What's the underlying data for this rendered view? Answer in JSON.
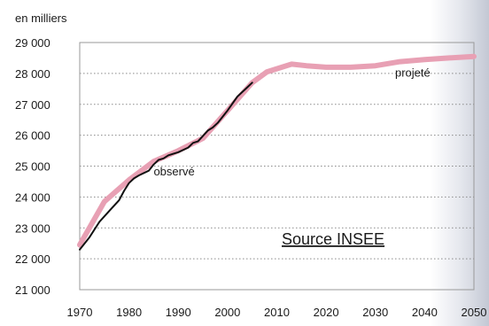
{
  "chart_data": {
    "type": "line",
    "title": "",
    "unit_label": "en milliers",
    "xlabel": "",
    "ylabel": "",
    "xlim": [
      1970,
      2050
    ],
    "ylim": [
      21000,
      29000
    ],
    "x_ticks": [
      1970,
      1980,
      1990,
      2000,
      2010,
      2020,
      2030,
      2040,
      2050
    ],
    "x_tick_labels": [
      "1970",
      "1980",
      "1990",
      "2000",
      "2010",
      "2020",
      "2030",
      "2040",
      "2050"
    ],
    "y_ticks": [
      21000,
      22000,
      23000,
      24000,
      25000,
      26000,
      27000,
      28000,
      29000
    ],
    "y_tick_labels": [
      "21 000",
      "22 000",
      "23 000",
      "24 000",
      "25 000",
      "26 000",
      "27 000",
      "28 000",
      "29 000"
    ],
    "grid": "horizontal dotted",
    "series": [
      {
        "name": "projeté",
        "color": "#e8a0b4",
        "x": [
          1970,
          1975,
          1980,
          1985,
          1990,
          1995,
          2000,
          2005,
          2008,
          2010,
          2013,
          2016,
          2020,
          2025,
          2030,
          2035,
          2040,
          2045,
          2050
        ],
        "y": [
          22450,
          23850,
          24550,
          25150,
          25500,
          25900,
          26800,
          27700,
          28050,
          28150,
          28300,
          28250,
          28200,
          28200,
          28250,
          28380,
          28450,
          28500,
          28550
        ]
      },
      {
        "name": "observé",
        "color": "#111111",
        "x": [
          1970,
          1972,
          1974,
          1976,
          1978,
          1979,
          1980,
          1981,
          1982,
          1984,
          1985,
          1986,
          1987,
          1988,
          1990,
          1992,
          1993,
          1994,
          1996,
          1997,
          1998,
          2000,
          2002,
          2004,
          2005
        ],
        "y": [
          22300,
          22700,
          23200,
          23550,
          23900,
          24200,
          24450,
          24600,
          24700,
          24850,
          25050,
          25200,
          25250,
          25350,
          25450,
          25600,
          25750,
          25800,
          26150,
          26250,
          26400,
          26800,
          27250,
          27550,
          27700
        ]
      }
    ],
    "annotations": [
      {
        "text": "projeté",
        "x": 2034,
        "y": 27900
      },
      {
        "text": "observé",
        "x": 1985,
        "y": 24700
      }
    ],
    "source_note": "Source INSEE"
  }
}
